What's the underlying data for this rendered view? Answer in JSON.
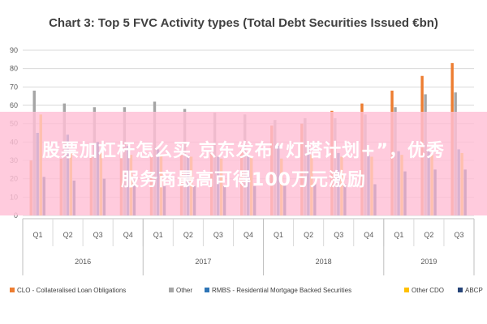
{
  "chart_data": {
    "type": "bar",
    "title": "Chart 3: Top 5 FVC Activity types (Total Debt Securities Issued €bn)",
    "ylim": [
      0,
      90
    ],
    "yticks": [
      0,
      10,
      20,
      30,
      40,
      50,
      60,
      70,
      80,
      90
    ],
    "categories": [
      "Q1",
      "Q2",
      "Q3",
      "Q4",
      "Q1",
      "Q2",
      "Q3",
      "Q4",
      "Q1",
      "Q2",
      "Q3",
      "Q4",
      "Q1",
      "Q2",
      "Q3"
    ],
    "years": [
      {
        "label": "2016",
        "quarters": 4
      },
      {
        "label": "2017",
        "quarters": 4
      },
      {
        "label": "2018",
        "quarters": 4
      },
      {
        "label": "2019",
        "quarters": 3
      }
    ],
    "grid": true,
    "legend_position": "bottom",
    "series": [
      {
        "name": "CLO - Collateralised Loan Obligations",
        "color": "#ed7d31",
        "values": [
          30,
          31,
          32,
          33,
          32,
          33,
          34,
          36,
          49,
          50,
          57,
          61,
          68,
          76,
          83
        ]
      },
      {
        "name": "Other",
        "color": "#a5a5a5",
        "values": [
          68,
          61,
          59,
          59,
          62,
          58,
          56,
          55,
          52,
          53,
          53,
          55,
          59,
          66,
          67
        ]
      },
      {
        "name": "RMBS - Residential Mortgage Backed Securities",
        "color": "#2e75b6",
        "values": [
          45,
          44,
          40,
          38,
          36,
          33,
          32,
          33,
          38,
          38,
          34,
          33,
          35,
          35,
          36
        ]
      },
      {
        "name": "Other CDO",
        "color": "#ffc000",
        "values": [
          55,
          34,
          34,
          33,
          33,
          32,
          31,
          32,
          31,
          33,
          32,
          32,
          33,
          33,
          34
        ]
      },
      {
        "name": "ABCP",
        "color": "#264478",
        "values": [
          21,
          19,
          20,
          19,
          16,
          16,
          16,
          16,
          17,
          17,
          17,
          17,
          24,
          25,
          25
        ]
      }
    ]
  },
  "overlay": {
    "line1": "股票加杠杆怎么买 京东发布“灯塔计划+”，优秀",
    "line2": "服务商最高可得100万元激励"
  }
}
